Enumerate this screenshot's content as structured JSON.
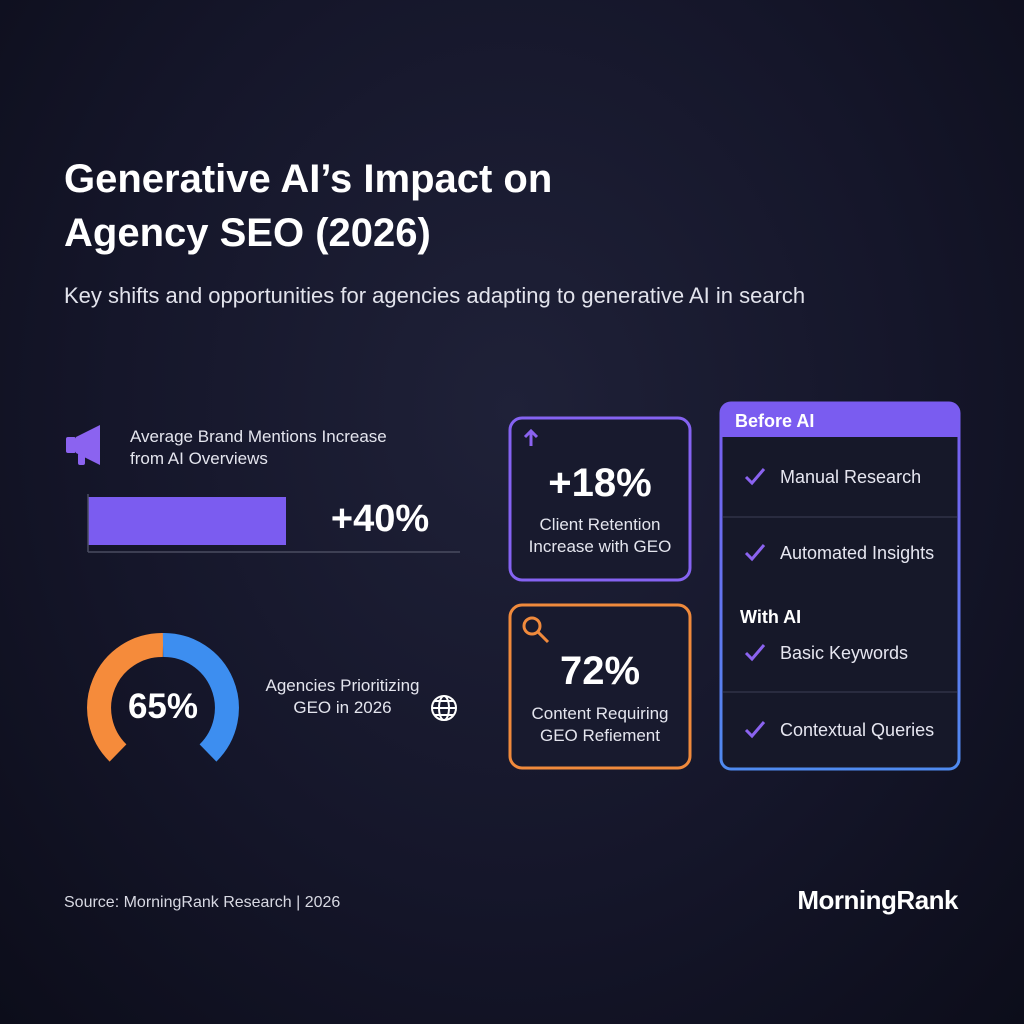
{
  "header": {
    "title": "Generative AI’s Impact on Agency SEO (2026)",
    "subtitle": "Key shifts and opportunities for agencies adapting to generative AI in search"
  },
  "brand_mentions": {
    "label": "Average Brand Mentions Increase from AI Overviews",
    "value": "+40%"
  },
  "gauge": {
    "value": "65%",
    "label": "Agencies Prioritizing GEO in 2026"
  },
  "cards": [
    {
      "value": "+18%",
      "label": "Client Retention Increase with GEO"
    },
    {
      "value": "72%",
      "label": "Content Requiring GEO Refiement"
    }
  ],
  "comparison": {
    "before_title": "Before AI",
    "before_items": [
      "Manual Research",
      "Automated Insights"
    ],
    "after_title": "With AI",
    "after_items": [
      "Basic Keywords",
      "Contextual Queries"
    ]
  },
  "footer": {
    "source": "Source: MorningRank Research | 2026",
    "brand": "MorningRank"
  }
}
